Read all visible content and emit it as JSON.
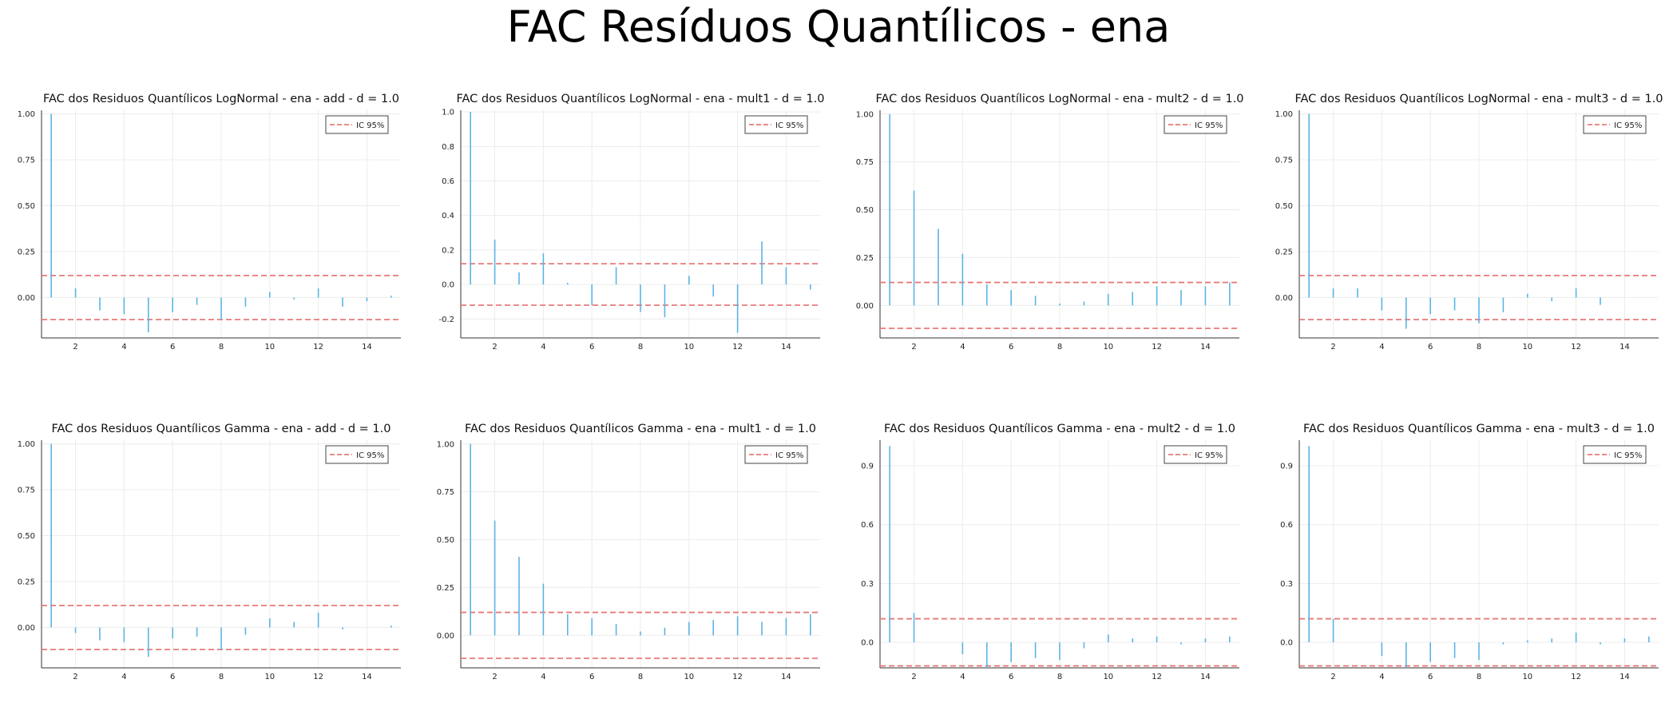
{
  "figure": {
    "title": "FAC Resíduos Quantílicos - ena"
  },
  "colors": {
    "bar": "#5ab4e5",
    "ci": "#e8797a",
    "grid": "#ececec",
    "axis": "#333333"
  },
  "chart_data": [
    {
      "type": "bar",
      "title": "FAC dos Residuos Quantílicos LogNormal - ena - add - d = 1.0",
      "legend": [
        "IC 95%"
      ],
      "legend_position": "top-right",
      "grid": true,
      "xlim": [
        0.6,
        15.4
      ],
      "ylim": [
        -0.22,
        1.02
      ],
      "xticks": [
        2,
        4,
        6,
        8,
        10,
        12,
        14
      ],
      "yticks": [
        0,
        0.25,
        0.5,
        0.75,
        1
      ],
      "ytick_labels": [
        "0.00",
        "0.25",
        "0.50",
        "0.75",
        "1.00"
      ],
      "ci": [
        0.12,
        -0.12
      ],
      "x": [
        1,
        2,
        3,
        4,
        5,
        6,
        7,
        8,
        9,
        10,
        11,
        12,
        13,
        14,
        15
      ],
      "values": [
        1.0,
        0.05,
        -0.07,
        -0.09,
        -0.19,
        -0.08,
        -0.04,
        -0.12,
        -0.05,
        0.03,
        -0.01,
        0.05,
        -0.05,
        -0.02,
        0.01
      ]
    },
    {
      "type": "bar",
      "title": "FAC dos Residuos Quantílicos LogNormal - ena - mult1 - d = 1.0",
      "legend": [
        "IC 95%"
      ],
      "legend_position": "top-right",
      "grid": true,
      "xlim": [
        0.6,
        15.4
      ],
      "ylim": [
        -0.31,
        1.01
      ],
      "xticks": [
        2,
        4,
        6,
        8,
        10,
        12,
        14
      ],
      "yticks": [
        -0.2,
        0,
        0.2,
        0.4,
        0.6,
        0.8,
        1
      ],
      "ytick_labels": [
        "-0.2",
        "0.0",
        "0.2",
        "0.4",
        "0.6",
        "0.8",
        "1.0"
      ],
      "ci": [
        0.12,
        -0.12
      ],
      "x": [
        1,
        2,
        3,
        4,
        5,
        6,
        7,
        8,
        9,
        10,
        11,
        12,
        13,
        14,
        15
      ],
      "values": [
        1.0,
        0.26,
        0.07,
        0.18,
        0.01,
        -0.12,
        0.1,
        -0.16,
        -0.19,
        0.05,
        -0.07,
        -0.28,
        0.25,
        0.1,
        -0.03
      ]
    },
    {
      "type": "bar",
      "title": "FAC dos Residuos Quantílicos LogNormal - ena - mult2 - d = 1.0",
      "legend": [
        "IC 95%"
      ],
      "legend_position": "top-right",
      "grid": true,
      "xlim": [
        0.6,
        15.4
      ],
      "ylim": [
        -0.17,
        1.02
      ],
      "xticks": [
        2,
        4,
        6,
        8,
        10,
        12,
        14
      ],
      "yticks": [
        0,
        0.25,
        0.5,
        0.75,
        1
      ],
      "ytick_labels": [
        "0.00",
        "0.25",
        "0.50",
        "0.75",
        "1.00"
      ],
      "ci": [
        0.12,
        -0.12
      ],
      "x": [
        1,
        2,
        3,
        4,
        5,
        6,
        7,
        8,
        9,
        10,
        11,
        12,
        13,
        14,
        15
      ],
      "values": [
        1.0,
        0.6,
        0.4,
        0.27,
        0.11,
        0.08,
        0.05,
        0.01,
        0.02,
        0.06,
        0.07,
        0.1,
        0.08,
        0.1,
        0.12
      ]
    },
    {
      "type": "bar",
      "title": "FAC dos Residuos Quantílicos LogNormal - ena - mult3 - d = 1.0",
      "legend": [
        "IC 95%"
      ],
      "legend_position": "top-right",
      "grid": true,
      "xlim": [
        0.6,
        15.4
      ],
      "ylim": [
        -0.22,
        1.02
      ],
      "xticks": [
        2,
        4,
        6,
        8,
        10,
        12,
        14
      ],
      "yticks": [
        0,
        0.25,
        0.5,
        0.75,
        1
      ],
      "ytick_labels": [
        "0.00",
        "0.25",
        "0.50",
        "0.75",
        "1.00"
      ],
      "ci": [
        0.12,
        -0.12
      ],
      "x": [
        1,
        2,
        3,
        4,
        5,
        6,
        7,
        8,
        9,
        10,
        11,
        12,
        13,
        14,
        15
      ],
      "values": [
        1.0,
        0.05,
        0.05,
        -0.07,
        -0.17,
        -0.09,
        -0.07,
        -0.14,
        -0.08,
        0.02,
        -0.02,
        0.05,
        -0.04,
        0.0,
        0.0
      ]
    },
    {
      "type": "bar",
      "title": "FAC dos Residuos Quantílicos Gamma - ena - add - d = 1.0",
      "legend": [
        "IC 95%"
      ],
      "legend_position": "top-right",
      "grid": true,
      "xlim": [
        0.6,
        15.4
      ],
      "ylim": [
        -0.22,
        1.02
      ],
      "xticks": [
        2,
        4,
        6,
        8,
        10,
        12,
        14
      ],
      "yticks": [
        0,
        0.25,
        0.5,
        0.75,
        1
      ],
      "ytick_labels": [
        "0.00",
        "0.25",
        "0.50",
        "0.75",
        "1.00"
      ],
      "ci": [
        0.12,
        -0.12
      ],
      "x": [
        1,
        2,
        3,
        4,
        5,
        6,
        7,
        8,
        9,
        10,
        11,
        12,
        13,
        14,
        15
      ],
      "values": [
        1.0,
        -0.03,
        -0.07,
        -0.08,
        -0.16,
        -0.06,
        -0.05,
        -0.12,
        -0.04,
        0.05,
        0.03,
        0.08,
        -0.01,
        0.0,
        0.01
      ]
    },
    {
      "type": "bar",
      "title": "FAC dos Residuos Quantílicos Gamma - ena - mult1 - d = 1.0",
      "legend": [
        "IC 95%"
      ],
      "legend_position": "top-right",
      "grid": true,
      "xlim": [
        0.6,
        15.4
      ],
      "ylim": [
        -0.17,
        1.02
      ],
      "xticks": [
        2,
        4,
        6,
        8,
        10,
        12,
        14
      ],
      "yticks": [
        0,
        0.25,
        0.5,
        0.75,
        1
      ],
      "ytick_labels": [
        "0.00",
        "0.25",
        "0.50",
        "0.75",
        "1.00"
      ],
      "ci": [
        0.12,
        -0.12
      ],
      "x": [
        1,
        2,
        3,
        4,
        5,
        6,
        7,
        8,
        9,
        10,
        11,
        12,
        13,
        14,
        15
      ],
      "values": [
        1.0,
        0.6,
        0.41,
        0.27,
        0.11,
        0.09,
        0.06,
        0.02,
        0.04,
        0.07,
        0.08,
        0.1,
        0.07,
        0.09,
        0.11
      ]
    },
    {
      "type": "bar",
      "title": "FAC dos Residuos Quantílicos Gamma - ena - mult2 - d = 1.0",
      "legend": [
        "IC 95%"
      ],
      "legend_position": "top-right",
      "grid": true,
      "xlim": [
        0.6,
        15.4
      ],
      "ylim": [
        -0.13,
        1.03
      ],
      "xticks": [
        2,
        4,
        6,
        8,
        10,
        12,
        14
      ],
      "yticks": [
        0,
        0.3,
        0.6,
        0.9
      ],
      "ytick_labels": [
        "0.0",
        "0.3",
        "0.6",
        "0.9"
      ],
      "ci": [
        0.12,
        -0.12
      ],
      "x": [
        1,
        2,
        3,
        4,
        5,
        6,
        7,
        8,
        9,
        10,
        11,
        12,
        13,
        14,
        15
      ],
      "values": [
        1.0,
        0.15,
        0.0,
        -0.06,
        -0.13,
        -0.1,
        -0.08,
        -0.09,
        -0.03,
        0.04,
        0.02,
        0.03,
        -0.01,
        0.02,
        0.03
      ]
    },
    {
      "type": "bar",
      "title": "FAC dos Residuos Quantílicos Gamma - ena - mult3 - d = 1.0",
      "legend": [
        "IC 95%"
      ],
      "legend_position": "top-right",
      "grid": true,
      "xlim": [
        0.6,
        15.4
      ],
      "ylim": [
        -0.13,
        1.03
      ],
      "xticks": [
        2,
        4,
        6,
        8,
        10,
        12,
        14
      ],
      "yticks": [
        0,
        0.3,
        0.6,
        0.9
      ],
      "ytick_labels": [
        "0.0",
        "0.3",
        "0.6",
        "0.9"
      ],
      "ci": [
        0.12,
        -0.12
      ],
      "x": [
        1,
        2,
        3,
        4,
        5,
        6,
        7,
        8,
        9,
        10,
        11,
        12,
        13,
        14,
        15
      ],
      "values": [
        1.0,
        0.12,
        0.0,
        -0.07,
        -0.13,
        -0.1,
        -0.08,
        -0.09,
        -0.01,
        0.01,
        0.02,
        0.05,
        -0.01,
        0.02,
        0.03
      ]
    }
  ]
}
